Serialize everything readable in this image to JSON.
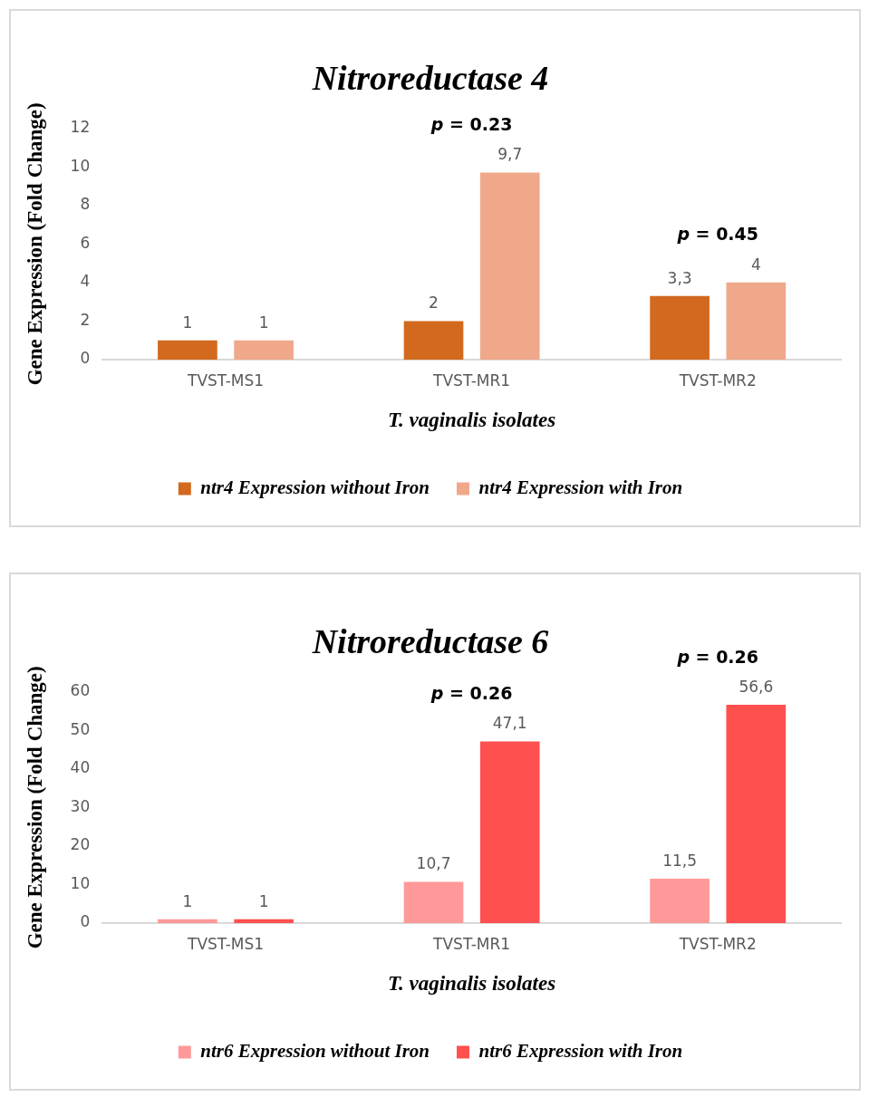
{
  "chart_data": [
    {
      "type": "bar",
      "title": "Nitroreductase 4",
      "xlabel": "T. vaginalis isolates",
      "ylabel": "Gene Expression (Fold Change)",
      "categories": [
        "TVST-MS1",
        "TVST-MR1",
        "TVST-MR2"
      ],
      "series": [
        {
          "name": "ntr4 Expression without Iron",
          "color": "#d2691e",
          "values": [
            1,
            2,
            3.3
          ],
          "value_labels": [
            "1",
            "2",
            "3,3"
          ]
        },
        {
          "name": "ntr4 Expression with Iron",
          "color": "#f0a88a",
          "values": [
            1,
            9.7,
            4
          ],
          "value_labels": [
            "1",
            "9,7",
            "4"
          ]
        }
      ],
      "ylim": [
        0,
        12
      ],
      "yticks": [
        0,
        2,
        4,
        6,
        8,
        10,
        12
      ],
      "grid": false,
      "legend": "bottom",
      "annotations": [
        "p = 0.23",
        "p = 0.45"
      ]
    },
    {
      "type": "bar",
      "title": "Nitroreductase 6",
      "xlabel": "T. vaginalis isolates",
      "ylabel": "Gene Expression (Fold Change)",
      "categories": [
        "TVST-MS1",
        "TVST-MR1",
        "TVST-MR2"
      ],
      "series": [
        {
          "name": "ntr6 Expression without Iron",
          "color": "#ff9999",
          "values": [
            1,
            10.7,
            11.5
          ],
          "value_labels": [
            "1",
            "10,7",
            "11,5"
          ]
        },
        {
          "name": "ntr6 Expression with Iron",
          "color": "#ff5050",
          "values": [
            1,
            47.1,
            56.6
          ],
          "value_labels": [
            "1",
            "47,1",
            "56,6"
          ]
        }
      ],
      "ylim": [
        0,
        60
      ],
      "yticks": [
        0,
        10,
        20,
        30,
        40,
        50,
        60
      ],
      "grid": false,
      "legend": "bottom",
      "annotations": [
        "p = 0.26",
        "p = 0.26"
      ]
    }
  ]
}
